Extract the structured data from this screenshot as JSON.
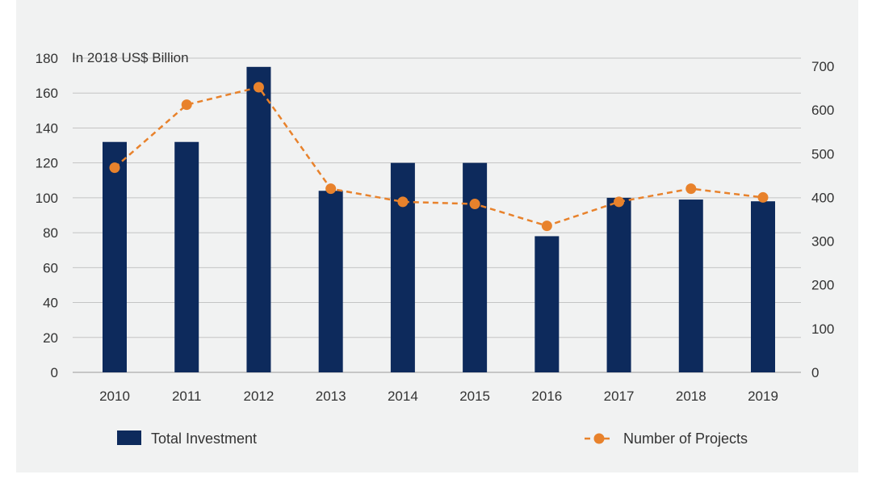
{
  "chart_data": {
    "type": "bar",
    "unit_label": "In 2018 US$ Billion",
    "categories": [
      "2010",
      "2011",
      "2012",
      "2013",
      "2014",
      "2015",
      "2016",
      "2017",
      "2018",
      "2019"
    ],
    "series": [
      {
        "name": "Total Investment",
        "type": "bar",
        "axis": "left",
        "color": "#0d2a5c",
        "values": [
          132,
          132,
          175,
          104,
          120,
          120,
          78,
          100,
          99,
          98
        ]
      },
      {
        "name": "Number of Projects",
        "type": "line",
        "axis": "right",
        "style": "dashed-with-markers",
        "color": "#e8822c",
        "values": [
          468,
          612,
          652,
          420,
          390,
          385,
          335,
          390,
          420,
          400
        ]
      }
    ],
    "y_left": {
      "min": 0,
      "max": 180,
      "ticks": [
        "0",
        "20",
        "40",
        "60",
        "80",
        "100",
        "120",
        "140",
        "160",
        "180"
      ]
    },
    "y_right": {
      "min": 0,
      "max": 700,
      "ticks": [
        "0",
        "100",
        "200",
        "300",
        "400",
        "500",
        "600",
        "700"
      ]
    },
    "grid": "horizontal",
    "legend": "bottom"
  }
}
